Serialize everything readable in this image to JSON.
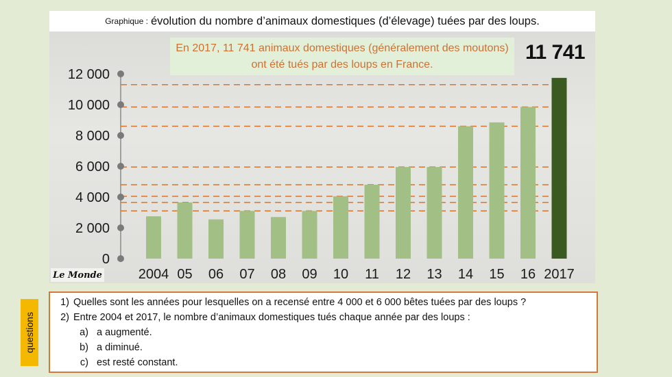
{
  "header": {
    "prefix": "Graphique :",
    "title": "évolution du nombre d’animaux domestiques (d’élevage) tuées par des loups."
  },
  "annotation": "En 2017, 11 741 animaux domestiques (généralement des moutons) ont été tués par des loups en France.",
  "highlight_value": "11 741",
  "source": "Le Monde",
  "colors": {
    "bar": "#a2c085",
    "bar_highlight": "#3b5a1f",
    "reference_line": "#d8742e",
    "axis_dot": "#7a7a7a"
  },
  "chart_data": {
    "type": "bar",
    "title": "",
    "xlabel": "",
    "ylabel": "",
    "categories": [
      "2004",
      "05",
      "06",
      "07",
      "08",
      "09",
      "10",
      "11",
      "12",
      "13",
      "14",
      "15",
      "16",
      "2017"
    ],
    "values": [
      2750,
      3650,
      2550,
      3100,
      2700,
      3100,
      4050,
      4800,
      5950,
      5950,
      8600,
      8850,
      9850,
      11741
    ],
    "highlight_index": 13,
    "ylim": [
      0,
      12000
    ],
    "yticks": [
      0,
      2000,
      4000,
      6000,
      8000,
      10000,
      12000
    ],
    "ytick_labels": [
      "0",
      "2 000",
      "4 000",
      "6 000",
      "8 000",
      "10 000",
      "12 000"
    ],
    "reference_lines": [
      11300,
      9850,
      8600,
      5950,
      4800,
      4050,
      3650,
      3100
    ],
    "grid": false,
    "legend": "none"
  },
  "questions": {
    "tab_label": "questions",
    "items": [
      {
        "num": "1)",
        "text": "Quelles sont les années pour lesquelles on a recensé entre 4 000 et 6 000 bêtes tuées par des loups ?"
      },
      {
        "num": "2)",
        "text": "Entre 2004 et 2017, le nombre d’animaux domestiques tués chaque année par des loups :"
      }
    ],
    "subitems": [
      {
        "num": "a)",
        "text": "a augmenté."
      },
      {
        "num": "b)",
        "text": "a diminué."
      },
      {
        "num": "c)",
        "text": "est resté constant."
      }
    ]
  }
}
